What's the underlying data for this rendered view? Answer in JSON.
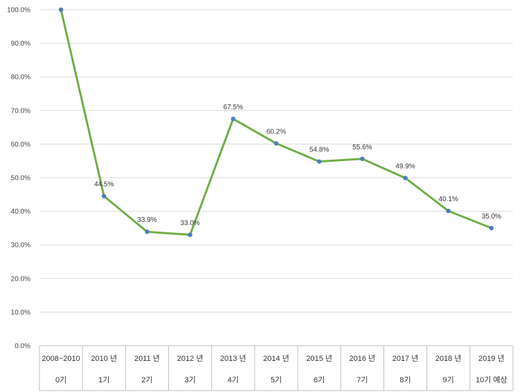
{
  "chart_data": {
    "type": "line",
    "title": "",
    "xlabel": "",
    "ylabel": "",
    "ylim": [
      0,
      100
    ],
    "y_tick_labels": [
      "0.0%",
      "10.0%",
      "20.0%",
      "30.0%",
      "40.0%",
      "50.0%",
      "60.0%",
      "70.0%",
      "80.0%",
      "90.0%",
      "100.0%"
    ],
    "grid": true,
    "categories": [
      {
        "year": "2008~2010",
        "term": "0기"
      },
      {
        "year": "2010 년",
        "term": "1기"
      },
      {
        "year": "2011 년",
        "term": "2기"
      },
      {
        "year": "2012 년",
        "term": "3기"
      },
      {
        "year": "2013 년",
        "term": "4기"
      },
      {
        "year": "2014 년",
        "term": "5기"
      },
      {
        "year": "2015 년",
        "term": "6기"
      },
      {
        "year": "2016 년",
        "term": "7기"
      },
      {
        "year": "2017 년",
        "term": "8기"
      },
      {
        "year": "2018 년",
        "term": "9기"
      },
      {
        "year": "2019 년",
        "term": "10기 예상"
      }
    ],
    "series": [
      {
        "name": "",
        "values": [
          100.0,
          44.5,
          33.9,
          33.0,
          67.5,
          60.2,
          54.8,
          55.6,
          49.9,
          40.1,
          35.0
        ],
        "labels": [
          "",
          "44.5%",
          "33.9%",
          "33.0%",
          "67.5%",
          "60.2%",
          "54.8%",
          "55.6%",
          "49.9%",
          "40.1%",
          "35.0%"
        ]
      }
    ],
    "colors": {
      "line": "#70ad47",
      "marker": "#4a7ebb",
      "grid": "#d9d9d9",
      "axis": "#bfbfbf"
    }
  }
}
